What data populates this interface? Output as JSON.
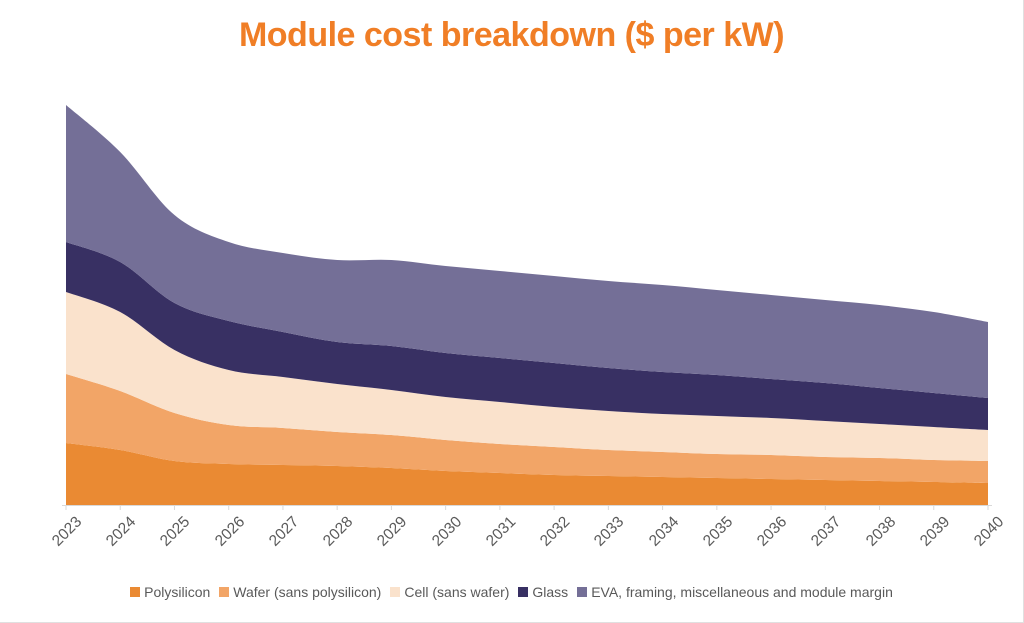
{
  "title": {
    "text": "Module cost breakdown ($ per kW)",
    "color": "#F07E26"
  },
  "axis": {
    "line_color": "#D9D9D9",
    "tick_color": "#D9D9D9",
    "label_color": "#595959"
  },
  "legend": {
    "text_color": "#595959",
    "position": "bottom"
  },
  "chart_data": {
    "type": "area",
    "stacked": true,
    "title": "Module cost breakdown ($ per kW)",
    "xlabel": "",
    "ylabel": "",
    "unit": "relative cost (chart displays no y-axis scale or gridlines)",
    "y_axis_visible": false,
    "grid": false,
    "legend_position": "bottom",
    "x_tick_rotation_deg": 45,
    "x": [
      "2023",
      "2024",
      "2025",
      "2026",
      "2027",
      "2028",
      "2029",
      "2030",
      "2031",
      "2032",
      "2033",
      "2034",
      "2035",
      "2036",
      "2037",
      "2038",
      "2039",
      "2040"
    ],
    "series": [
      {
        "name": "Polysilicon",
        "color": "#EA8A33",
        "values": [
          62,
          55,
          44,
          41,
          40,
          39,
          37,
          34,
          32,
          30,
          29,
          28,
          27,
          26,
          25,
          24,
          23,
          22
        ]
      },
      {
        "name": "Wafer (sans polysilicon)",
        "color": "#F2A567",
        "values": [
          69,
          59,
          48,
          39,
          37,
          34,
          33,
          31,
          29,
          28,
          26,
          25,
          24,
          24,
          23,
          23,
          22,
          22
        ]
      },
      {
        "name": "Cell (sans wafer)",
        "color": "#FAE2CC",
        "values": [
          82,
          79,
          63,
          55,
          51,
          48,
          45,
          43,
          42,
          40,
          39,
          38,
          38,
          37,
          36,
          34,
          33,
          31
        ]
      },
      {
        "name": "Glass",
        "color": "#383063",
        "values": [
          50,
          50,
          47,
          49,
          45,
          42,
          44,
          44,
          44,
          44,
          43,
          42,
          41,
          39,
          38,
          36,
          34,
          32
        ]
      },
      {
        "name": "EVA, framing, miscellaneous and module margin",
        "color": "#746F97",
        "values": [
          137,
          110,
          88,
          79,
          79,
          82,
          86,
          87,
          87,
          87,
          87,
          87,
          85,
          84,
          83,
          83,
          81,
          76
        ]
      }
    ]
  }
}
